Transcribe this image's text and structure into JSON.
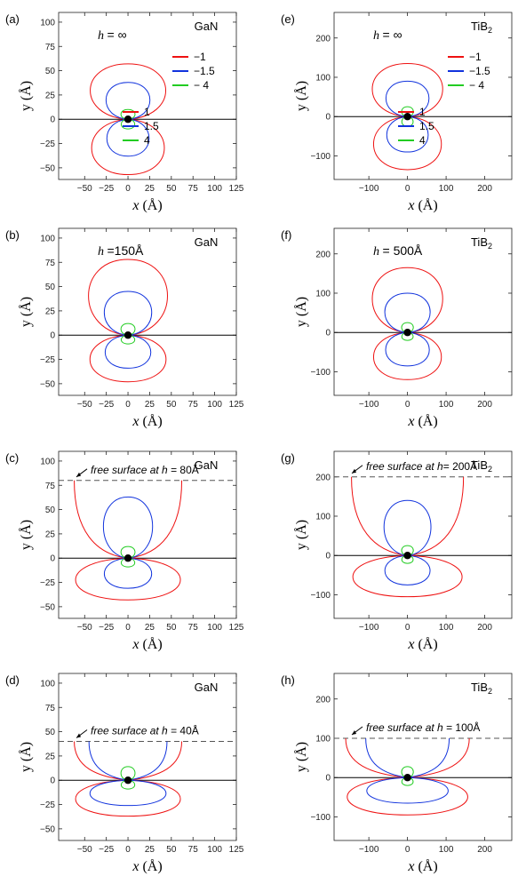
{
  "chart_data": [
    {
      "type": "line",
      "panel_label": "(a)",
      "material": "GaN",
      "material_sub": "",
      "h_text": "h",
      "h_value": "= ∞",
      "free_surface": null,
      "xlabel": "x",
      "ylabel": "y",
      "unit": "(Å)",
      "xlim": [
        -80,
        125
      ],
      "ylim": [
        -62,
        110
      ],
      "xticks": [
        -50,
        -25,
        0,
        25,
        50,
        75,
        100,
        125
      ],
      "yticks": [
        -50,
        -25,
        0,
        25,
        50,
        75,
        100
      ],
      "xtick_labels": [
        "−50",
        "−25",
        "0",
        "25",
        "50",
        "75",
        "100",
        "125"
      ],
      "ytick_labels": [
        "−50",
        "−25",
        "0",
        "25",
        "50",
        "75",
        "100"
      ],
      "lobe_heights": {
        "upper": [
          57,
          38,
          10
        ],
        "lower": [
          57,
          38,
          10
        ]
      },
      "lobe_widths": [
        43,
        25,
        8
      ],
      "surface_level": null,
      "ring_levels": [
        57,
        38,
        10
      ],
      "legend": [
        {
          "group": "negative",
          "entries": [
            {
              "label": "−1",
              "color": "#ee1111"
            },
            {
              "label": "−1.5",
              "color": "#1133dd"
            },
            {
              "label": "− 4",
              "color": "#22cc22"
            }
          ]
        },
        {
          "group": "positive",
          "entries": [
            {
              "label": "1",
              "color": "#ee1111"
            },
            {
              "label": "1.5",
              "color": "#1133dd"
            },
            {
              "label": "4",
              "color": "#22cc22"
            }
          ]
        }
      ]
    },
    {
      "type": "line",
      "panel_label": "(b)",
      "material": "GaN",
      "material_sub": "",
      "h_text": "h",
      "h_value": "=150Å",
      "free_surface": null,
      "xlabel": "x",
      "ylabel": "y",
      "unit": "(Å)",
      "xlim": [
        -80,
        125
      ],
      "ylim": [
        -62,
        110
      ],
      "xticks": [
        -50,
        -25,
        0,
        25,
        50,
        75,
        100,
        125
      ],
      "yticks": [
        -50,
        -25,
        0,
        25,
        50,
        75,
        100
      ],
      "xtick_labels": [
        "−50",
        "−25",
        "0",
        "25",
        "50",
        "75",
        "100",
        "125"
      ],
      "ytick_labels": [
        "−50",
        "−25",
        "0",
        "25",
        "50",
        "75",
        "100"
      ],
      "lobe_heights": {
        "upper": [
          78,
          45,
          12
        ],
        "lower": [
          48,
          34,
          9
        ]
      },
      "lobe_widths": [
        45,
        27,
        8
      ],
      "surface_level": null,
      "ring_levels": [
        78,
        45,
        12
      ],
      "legend": []
    },
    {
      "type": "line",
      "panel_label": "(c)",
      "material": "GaN",
      "material_sub": "",
      "h_text": "h",
      "h_value": " = 80Å",
      "free_surface": "free surface at",
      "xlabel": "x",
      "ylabel": "y",
      "unit": "(Å)",
      "xlim": [
        -80,
        125
      ],
      "ylim": [
        -62,
        110
      ],
      "xticks": [
        -50,
        -25,
        0,
        25,
        50,
        75,
        100,
        125
      ],
      "yticks": [
        -50,
        -25,
        0,
        25,
        50,
        75,
        100
      ],
      "xtick_labels": [
        "−50",
        "−25",
        "0",
        "25",
        "50",
        "75",
        "100",
        "125"
      ],
      "ytick_labels": [
        "−50",
        "−25",
        "0",
        "25",
        "50",
        "75",
        "100"
      ],
      "lobe_heights": {
        "upper": [
          80,
          63,
          12
        ],
        "lower": [
          43,
          31,
          9
        ]
      },
      "lobe_widths": [
        62,
        28,
        8
      ],
      "surface_level": 80,
      "ring_levels": [
        80,
        63,
        12
      ],
      "legend": []
    },
    {
      "type": "line",
      "panel_label": "(d)",
      "material": "GaN",
      "material_sub": "",
      "h_text": "h",
      "h_value": " = 40Å",
      "free_surface": "free surface at",
      "xlabel": "x",
      "ylabel": "y",
      "unit": "(Å)",
      "xlim": [
        -80,
        125
      ],
      "ylim": [
        -62,
        110
      ],
      "xticks": [
        -50,
        -25,
        0,
        25,
        50,
        75,
        100,
        125
      ],
      "yticks": [
        -50,
        -25,
        0,
        25,
        50,
        75,
        100
      ],
      "xtick_labels": [
        "−50",
        "−25",
        "0",
        "25",
        "50",
        "75",
        "100",
        "125"
      ],
      "ytick_labels": [
        "−50",
        "−25",
        "0",
        "25",
        "50",
        "75",
        "100"
      ],
      "lobe_heights": {
        "upper": [
          40,
          40,
          14
        ],
        "lower": [
          37,
          26,
          9
        ]
      },
      "lobe_widths": [
        62,
        45,
        8
      ],
      "surface_level": 40,
      "ring_levels": [
        40,
        40,
        14
      ],
      "legend": []
    },
    {
      "type": "line",
      "panel_label": "(e)",
      "material": "TiB",
      "material_sub": "2",
      "h_text": "h",
      "h_value": "= ∞",
      "free_surface": null,
      "xlabel": "x",
      "ylabel": "y",
      "unit": "(Å)",
      "xlim": [
        -190,
        270
      ],
      "ylim": [
        -160,
        265
      ],
      "xticks": [
        -100,
        0,
        100,
        200
      ],
      "yticks": [
        -100,
        0,
        100,
        200
      ],
      "xtick_labels": [
        "−100",
        "0",
        "100",
        "200"
      ],
      "ytick_labels": [
        "−100",
        "0",
        "100",
        "200"
      ],
      "lobe_heights": {
        "upper": [
          135,
          90,
          25
        ],
        "lower": [
          135,
          90,
          25
        ]
      },
      "lobe_widths": [
        90,
        55,
        15
      ],
      "surface_level": null,
      "ring_levels": [
        135,
        90,
        25
      ],
      "legend": [
        {
          "group": "negative",
          "entries": [
            {
              "label": "−1",
              "color": "#ee1111"
            },
            {
              "label": "−1.5",
              "color": "#1133dd"
            },
            {
              "label": "− 4",
              "color": "#22cc22"
            }
          ]
        },
        {
          "group": "positive",
          "entries": [
            {
              "label": "1",
              "color": "#ee1111"
            },
            {
              "label": "1.5",
              "color": "#1133dd"
            },
            {
              "label": "4",
              "color": "#22cc22"
            }
          ]
        }
      ]
    },
    {
      "type": "line",
      "panel_label": "(f)",
      "material": "TiB",
      "material_sub": "2",
      "h_text": "h",
      "h_value": " = 500Å",
      "free_surface": null,
      "xlabel": "x",
      "ylabel": "y",
      "unit": "(Å)",
      "xlim": [
        -190,
        270
      ],
      "ylim": [
        -160,
        265
      ],
      "xticks": [
        -100,
        0,
        100,
        200
      ],
      "yticks": [
        -100,
        0,
        100,
        200
      ],
      "xtick_labels": [
        "−100",
        "0",
        "100",
        "200"
      ],
      "ytick_labels": [
        "−100",
        "0",
        "100",
        "200"
      ],
      "lobe_heights": {
        "upper": [
          165,
          100,
          25
        ],
        "lower": [
          120,
          85,
          20
        ]
      },
      "lobe_widths": [
        90,
        58,
        15
      ],
      "surface_level": null,
      "ring_levels": [
        165,
        100,
        25
      ],
      "legend": []
    },
    {
      "type": "line",
      "panel_label": "(g)",
      "material": "TiB",
      "material_sub": "2",
      "h_text": "h",
      "h_value": "= 200Å",
      "free_surface": "free surface at",
      "xlabel": "x",
      "ylabel": "y",
      "unit": "(Å)",
      "xlim": [
        -190,
        270
      ],
      "ylim": [
        -160,
        265
      ],
      "xticks": [
        -100,
        0,
        100,
        200
      ],
      "yticks": [
        -100,
        0,
        100,
        200
      ],
      "xtick_labels": [
        "−100",
        "0",
        "100",
        "200"
      ],
      "ytick_labels": [
        "−100",
        "0",
        "100",
        "200"
      ],
      "lobe_heights": {
        "upper": [
          200,
          140,
          25
        ],
        "lower": [
          105,
          75,
          20
        ]
      },
      "lobe_widths": [
        145,
        60,
        15
      ],
      "surface_level": 200,
      "ring_levels": [
        200,
        140,
        25
      ],
      "legend": []
    },
    {
      "type": "line",
      "panel_label": "(h)",
      "material": "TiB",
      "material_sub": "2",
      "h_text": "h",
      "h_value": " = 100Å",
      "free_surface": "free surface at",
      "xlabel": "x",
      "ylabel": "y",
      "unit": "(Å)",
      "xlim": [
        -190,
        270
      ],
      "ylim": [
        -160,
        265
      ],
      "xticks": [
        -100,
        0,
        100,
        200
      ],
      "yticks": [
        -100,
        0,
        100,
        200
      ],
      "xtick_labels": [
        "−100",
        "0",
        "100",
        "200"
      ],
      "ytick_labels": [
        "−100",
        "0",
        "100",
        "200"
      ],
      "lobe_heights": {
        "upper": [
          100,
          100,
          28
        ],
        "lower": [
          95,
          65,
          20
        ]
      },
      "lobe_widths": [
        160,
        108,
        15
      ],
      "surface_level": 100,
      "ring_levels": [
        100,
        100,
        28
      ],
      "legend": []
    }
  ],
  "colors": {
    "level_1": "#ee1111",
    "level_1_5": "#1133dd",
    "level_4": "#22cc22",
    "axis": "#000000",
    "surface_line": "#555555"
  }
}
